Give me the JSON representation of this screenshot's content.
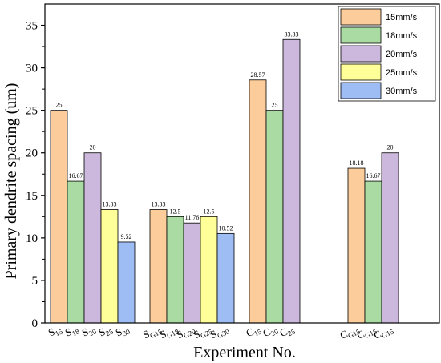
{
  "chart_data": {
    "type": "bar",
    "title": "",
    "xlabel": "Experiment No.",
    "ylabel": "Primary dendrite spacing (um)",
    "ylim": [
      0,
      37.5
    ],
    "yticks": [
      0,
      5,
      10,
      15,
      20,
      25,
      30,
      35
    ],
    "legend_placement": "top-right",
    "grid": false,
    "series": [
      {
        "name": "15mm/s",
        "color": "#fccc9a"
      },
      {
        "name": "18mm/s",
        "color": "#a9dba3"
      },
      {
        "name": "20mm/s",
        "color": "#ccb8dc"
      },
      {
        "name": "25mm/s",
        "color": "#ffff99"
      },
      {
        "name": "30mm/s",
        "color": "#9fbdf5"
      }
    ],
    "groups": [
      {
        "bars": [
          {
            "series": 0,
            "value": 25,
            "label": "25",
            "cat_main": "S",
            "cat_sub": "15"
          },
          {
            "series": 1,
            "value": 16.67,
            "label": "16.67",
            "cat_main": "S",
            "cat_sub": "18"
          },
          {
            "series": 2,
            "value": 20,
            "label": "20",
            "cat_main": "S",
            "cat_sub": "20"
          },
          {
            "series": 3,
            "value": 13.33,
            "label": "13.33",
            "cat_main": "S",
            "cat_sub": "25"
          },
          {
            "series": 4,
            "value": 9.52,
            "label": "9.52",
            "cat_main": "S",
            "cat_sub": "30"
          }
        ]
      },
      {
        "bars": [
          {
            "series": 0,
            "value": 13.33,
            "label": "13.33",
            "cat_main": "S",
            "cat_sub": "G15"
          },
          {
            "series": 1,
            "value": 12.5,
            "label": "12.5",
            "cat_main": "S",
            "cat_sub": "G18"
          },
          {
            "series": 2,
            "value": 11.76,
            "label": "11.76",
            "cat_main": "S",
            "cat_sub": "G20"
          },
          {
            "series": 3,
            "value": 12.5,
            "label": "12.5",
            "cat_main": "S",
            "cat_sub": "G25"
          },
          {
            "series": 4,
            "value": 10.52,
            "label": "10.52",
            "cat_main": "S",
            "cat_sub": "G30"
          }
        ]
      },
      {
        "bars": [
          {
            "series": 0,
            "value": 28.57,
            "label": "28.57",
            "cat_main": "C",
            "cat_sub": "15"
          },
          {
            "series": 1,
            "value": 25,
            "label": "25",
            "cat_main": "C",
            "cat_sub": "20"
          },
          {
            "series": 2,
            "value": 33.33,
            "label": "33.33",
            "cat_main": "C",
            "cat_sub": "25"
          }
        ]
      },
      {
        "bars": [
          {
            "series": 0,
            "value": 18.18,
            "label": "18.18",
            "cat_main": "C",
            "cat_sub": "G15"
          },
          {
            "series": 1,
            "value": 16.67,
            "label": "16.67",
            "cat_main": "C",
            "cat_sub": "G15"
          },
          {
            "series": 2,
            "value": 20,
            "label": "20",
            "cat_main": "C",
            "cat_sub": "G15"
          }
        ]
      }
    ]
  }
}
